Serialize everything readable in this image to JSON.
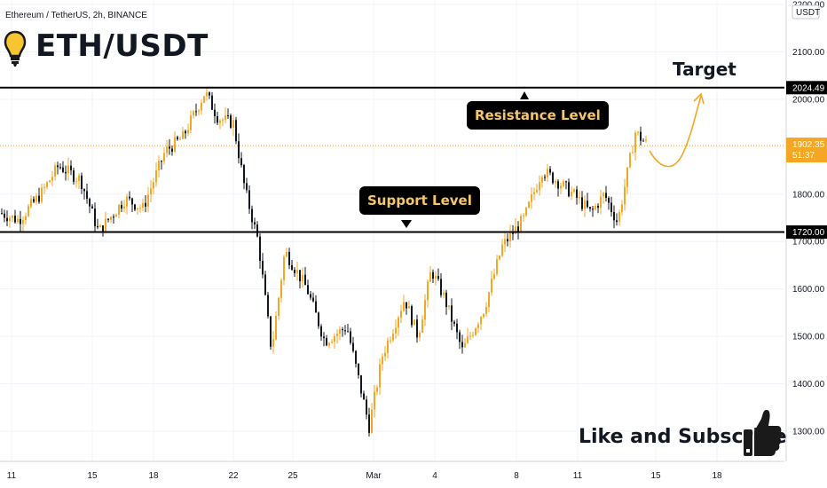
{
  "header": {
    "symbol_line": "Ethereum / TetherUS, 2h, BINANCE",
    "title": "ETH/USDT"
  },
  "annotations": {
    "resistance_label": "Resistance Level",
    "support_label": "Support Level",
    "target_label": "Target",
    "subscribe_text": "Like and Subscribe"
  },
  "icons": {
    "bulb": "lightbulb-icon",
    "thumb": "thumbs-up-icon"
  },
  "colors": {
    "bull": "#f5a623",
    "bear": "#131722",
    "current_price": "#f5a623",
    "callout_text": "#f5c66c",
    "level_line": "#000000"
  },
  "axis": {
    "currency_label": "USDT"
  },
  "price_tags": {
    "resistance": "2024.49",
    "current": "1902.35",
    "countdown": "51:37",
    "support": "1720.00"
  },
  "chart_data": {
    "type": "candlestick",
    "y_ticks": [
      "1300.00",
      "1400.00",
      "1500.00",
      "1600.00",
      "1700.00",
      "1800.00",
      "1900.00",
      "2000.00",
      "2100.00",
      "2200.00"
    ],
    "y_tick_values": [
      1300,
      1400,
      1500,
      1600,
      1700,
      1800,
      1900,
      2000,
      2100,
      2200
    ],
    "ylim": [
      1240,
      2200
    ],
    "x_ticks": [
      "11",
      "15",
      "18",
      "22",
      "25",
      "Mar",
      "4",
      "8",
      "11",
      "15",
      "18"
    ],
    "levels": {
      "resistance": 2024.49,
      "support": 1720.0,
      "current": 1902.35
    },
    "price_path": [
      [
        0,
        1760
      ],
      [
        20,
        1745
      ],
      [
        45,
        1800
      ],
      [
        65,
        1860
      ],
      [
        90,
        1830
      ],
      [
        110,
        1720
      ],
      [
        140,
        1790
      ],
      [
        160,
        1770
      ],
      [
        185,
        1890
      ],
      [
        205,
        1920
      ],
      [
        230,
        2015
      ],
      [
        245,
        1960
      ],
      [
        262,
        1950
      ],
      [
        275,
        1810
      ],
      [
        290,
        1700
      ],
      [
        305,
        1470
      ],
      [
        320,
        1680
      ],
      [
        345,
        1600
      ],
      [
        365,
        1490
      ],
      [
        390,
        1520
      ],
      [
        415,
        1310
      ],
      [
        430,
        1460
      ],
      [
        455,
        1580
      ],
      [
        470,
        1500
      ],
      [
        485,
        1640
      ],
      [
        500,
        1580
      ],
      [
        520,
        1470
      ],
      [
        545,
        1560
      ],
      [
        565,
        1690
      ],
      [
        590,
        1750
      ],
      [
        610,
        1850
      ],
      [
        625,
        1830
      ],
      [
        645,
        1800
      ],
      [
        665,
        1760
      ],
      [
        680,
        1800
      ],
      [
        695,
        1740
      ],
      [
        715,
        1930
      ],
      [
        728,
        1905
      ]
    ]
  }
}
